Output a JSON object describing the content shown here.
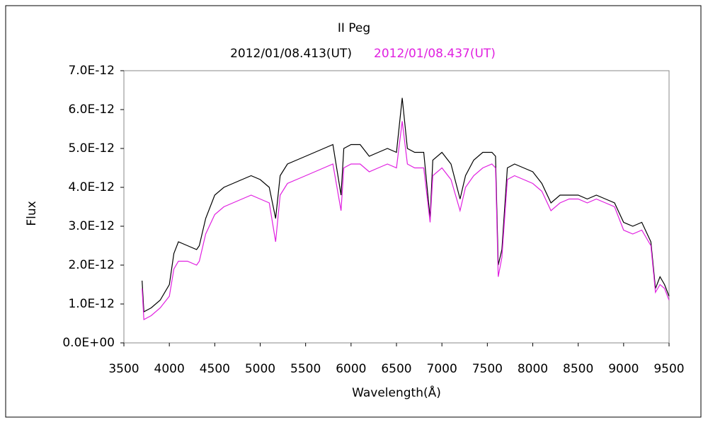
{
  "chart_data": {
    "type": "line",
    "title": "II Peg",
    "x_label": "Wavelength(Å)",
    "y_label": "Flux",
    "x": [
      3700,
      3720,
      3800,
      3900,
      4000,
      4050,
      4100,
      4200,
      4300,
      4330,
      4400,
      4500,
      4600,
      4700,
      4800,
      4900,
      5000,
      5100,
      5170,
      5220,
      5300,
      5400,
      5500,
      5600,
      5700,
      5800,
      5890,
      5920,
      6000,
      6100,
      6200,
      6300,
      6400,
      6500,
      6563,
      6620,
      6700,
      6800,
      6870,
      6900,
      7000,
      7100,
      7200,
      7260,
      7350,
      7450,
      7550,
      7590,
      7620,
      7660,
      7720,
      7800,
      7900,
      8000,
      8100,
      8200,
      8300,
      8400,
      8500,
      8600,
      8700,
      8800,
      8900,
      9000,
      9100,
      9200,
      9300,
      9350,
      9400,
      9450,
      9500
    ],
    "series": [
      {
        "name": "2012/01/08.413(UT)",
        "color": "#000000",
        "values": [
          1.6e-12,
          8e-13,
          9e-13,
          1.1e-12,
          1.5e-12,
          2.3e-12,
          2.6e-12,
          2.5e-12,
          2.4e-12,
          2.5e-12,
          3.2e-12,
          3.8e-12,
          4e-12,
          4.1e-12,
          4.2e-12,
          4.3e-12,
          4.2e-12,
          4e-12,
          3.2e-12,
          4.3e-12,
          4.6e-12,
          4.7e-12,
          4.8e-12,
          4.9e-12,
          5e-12,
          5.1e-12,
          3.8e-12,
          5e-12,
          5.1e-12,
          5.1e-12,
          4.8e-12,
          4.9e-12,
          5e-12,
          4.9e-12,
          6.3e-12,
          5e-12,
          4.9e-12,
          4.9e-12,
          3.2e-12,
          4.7e-12,
          4.9e-12,
          4.6e-12,
          3.7e-12,
          4.3e-12,
          4.7e-12,
          4.9e-12,
          4.9e-12,
          4.8e-12,
          2e-12,
          2.4e-12,
          4.5e-12,
          4.6e-12,
          4.5e-12,
          4.4e-12,
          4.1e-12,
          3.6e-12,
          3.8e-12,
          3.8e-12,
          3.8e-12,
          3.7e-12,
          3.8e-12,
          3.7e-12,
          3.6e-12,
          3.1e-12,
          3e-12,
          3.1e-12,
          2.6e-12,
          1.4e-12,
          1.7e-12,
          1.5e-12,
          1.2e-12
        ]
      },
      {
        "name": "2012/01/08.437(UT)",
        "color": "#e020e0",
        "values": [
          1.4e-12,
          6e-13,
          7e-13,
          9e-13,
          1.2e-12,
          1.9e-12,
          2.1e-12,
          2.1e-12,
          2e-12,
          2.1e-12,
          2.8e-12,
          3.3e-12,
          3.5e-12,
          3.6e-12,
          3.7e-12,
          3.8e-12,
          3.7e-12,
          3.6e-12,
          2.6e-12,
          3.8e-12,
          4.1e-12,
          4.2e-12,
          4.3e-12,
          4.4e-12,
          4.5e-12,
          4.6e-12,
          3.4e-12,
          4.5e-12,
          4.6e-12,
          4.6e-12,
          4.4e-12,
          4.5e-12,
          4.6e-12,
          4.5e-12,
          5.7e-12,
          4.6e-12,
          4.5e-12,
          4.5e-12,
          3.1e-12,
          4.3e-12,
          4.5e-12,
          4.2e-12,
          3.4e-12,
          4e-12,
          4.3e-12,
          4.5e-12,
          4.6e-12,
          4.5e-12,
          1.7e-12,
          2.2e-12,
          4.2e-12,
          4.3e-12,
          4.2e-12,
          4.1e-12,
          3.9e-12,
          3.4e-12,
          3.6e-12,
          3.7e-12,
          3.7e-12,
          3.6e-12,
          3.7e-12,
          3.6e-12,
          3.5e-12,
          2.9e-12,
          2.8e-12,
          2.9e-12,
          2.5e-12,
          1.3e-12,
          1.5e-12,
          1.4e-12,
          1.1e-12
        ]
      }
    ],
    "xlim": [
      3500,
      9500
    ],
    "xticks": [
      3500,
      4000,
      4500,
      5000,
      5500,
      6000,
      6500,
      7000,
      7500,
      8000,
      8500,
      9000,
      9500
    ],
    "ylim": [
      0,
      7e-12
    ],
    "yticks": [
      {
        "value": 0,
        "label": "0.0E+00"
      },
      {
        "value": 1e-12,
        "label": "1.0E-12"
      },
      {
        "value": 2e-12,
        "label": "2.0E-12"
      },
      {
        "value": 3e-12,
        "label": "3.0E-12"
      },
      {
        "value": 4e-12,
        "label": "4.0E-12"
      },
      {
        "value": 5e-12,
        "label": "5.0E-12"
      },
      {
        "value": 6e-12,
        "label": "6.0E-12"
      },
      {
        "value": 7e-12,
        "label": "7.0E-12"
      }
    ],
    "grid": false
  }
}
